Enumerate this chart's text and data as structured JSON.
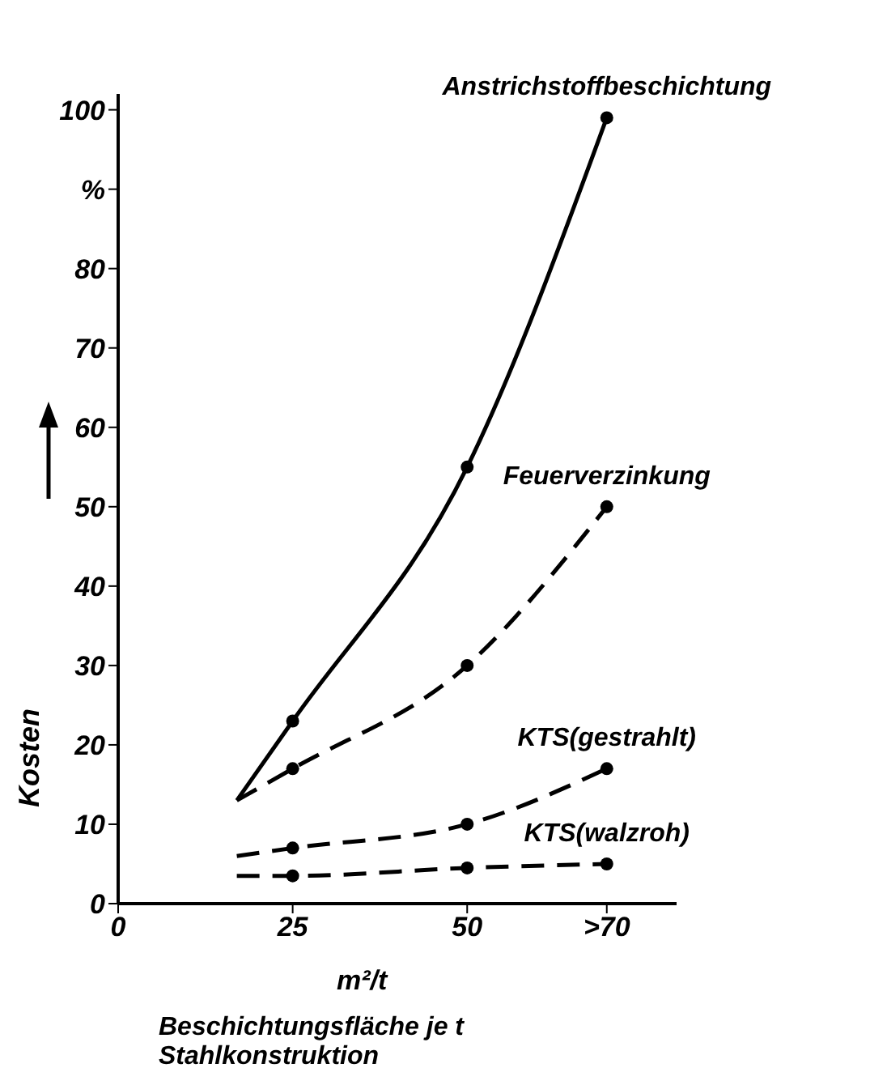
{
  "chart_data": {
    "type": "line",
    "xlabel": "Beschichtungsfläche je t Stahlkonstruktion",
    "ylabel": "Kosten",
    "annotations": [
      "m²/t"
    ],
    "x": [
      17,
      25,
      50,
      70
    ],
    "series": [
      {
        "name": "Anstrichstoffbeschichtung",
        "color": "#000000",
        "line_style": "solid",
        "values": [
          13,
          23,
          55,
          99
        ]
      },
      {
        "name": "Feuerverzinkung",
        "color": "#000000",
        "line_style": "dashed",
        "values": [
          13,
          17,
          30,
          50
        ]
      },
      {
        "name": "KTS(gestrahlt)",
        "color": "#000000",
        "line_style": "dashed",
        "values": [
          6,
          7,
          10,
          17
        ]
      },
      {
        "name": "KTS(walzroh)",
        "color": "#000000",
        "line_style": "dashed",
        "values": [
          3.5,
          3.5,
          4.5,
          5
        ]
      }
    ],
    "xlim": [
      0,
      80
    ],
    "xticks": [
      0,
      25,
      50,
      {
        "value": 70,
        "label": ">70"
      }
    ],
    "ylim": [
      0,
      102
    ],
    "yticks": [
      0,
      10,
      20,
      30,
      40,
      50,
      60,
      70,
      80,
      {
        "value": 90,
        "label": "%"
      },
      100
    ],
    "grid": false,
    "legend": false,
    "marker": "circle"
  }
}
